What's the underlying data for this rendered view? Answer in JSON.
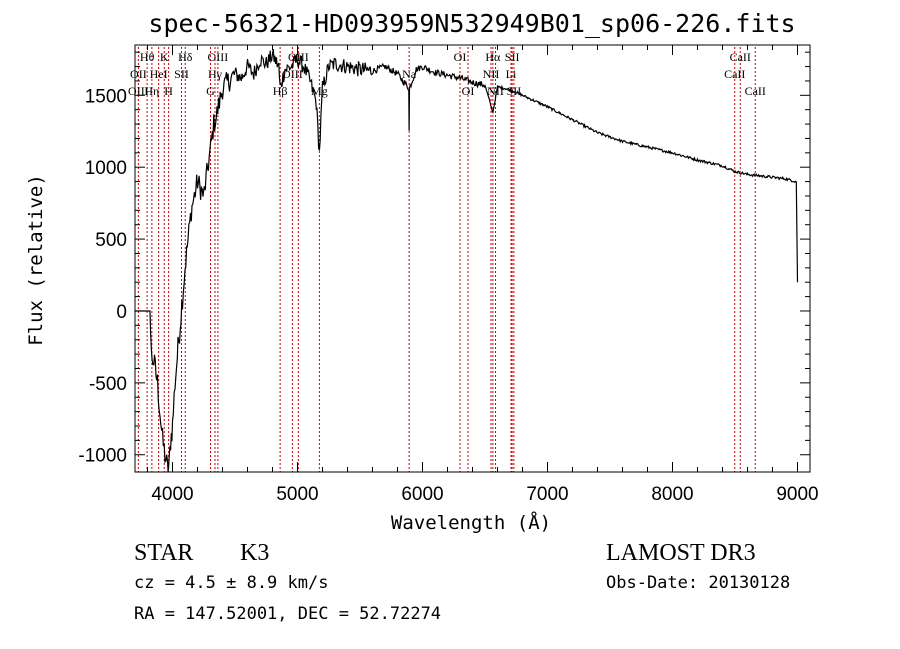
{
  "chart_data": {
    "type": "line",
    "title": "spec-56321-HD093959N532949B01_sp06-226.fits",
    "xlabel": "Wavelength (Å)",
    "ylabel": "Flux (relative)",
    "xlim": [
      3700,
      9100
    ],
    "ylim": [
      -1120,
      1850
    ],
    "x_ticks": [
      4000,
      5000,
      6000,
      7000,
      8000,
      9000
    ],
    "y_ticks": [
      -1000,
      -500,
      0,
      500,
      1000,
      1500
    ],
    "series": [
      {
        "name": "flux",
        "x": [
          3700,
          3780,
          3820,
          3830,
          3850,
          3880,
          3900,
          3920,
          3940,
          3960,
          3975,
          3985,
          4000,
          4020,
          4050,
          4080,
          4100,
          4150,
          4200,
          4250,
          4300,
          4330,
          4350,
          4400,
          4450,
          4500,
          4550,
          4600,
          4650,
          4700,
          4750,
          4800,
          4850,
          4861,
          4900,
          4950,
          5000,
          5050,
          5100,
          5150,
          5175,
          5200,
          5250,
          5300,
          5400,
          5500,
          5600,
          5700,
          5800,
          5890,
          5893,
          5896,
          5950,
          6000,
          6100,
          6200,
          6300,
          6400,
          6500,
          6563,
          6600,
          6700,
          6800,
          7000,
          7200,
          7400,
          7600,
          7800,
          8000,
          8200,
          8400,
          8500,
          8600,
          8700,
          8800,
          8900,
          8990,
          9000
        ],
        "y": [
          0,
          0,
          0,
          -300,
          -350,
          -500,
          -700,
          -900,
          -1000,
          -1100,
          -1050,
          -900,
          -800,
          -500,
          -200,
          100,
          300,
          700,
          900,
          800,
          1100,
          1300,
          1350,
          1550,
          1600,
          1650,
          1620,
          1700,
          1650,
          1750,
          1720,
          1780,
          1700,
          1550,
          1680,
          1700,
          1750,
          1700,
          1600,
          1450,
          1100,
          1550,
          1700,
          1720,
          1700,
          1680,
          1670,
          1700,
          1650,
          1550,
          1250,
          1550,
          1680,
          1700,
          1660,
          1640,
          1620,
          1590,
          1570,
          1380,
          1560,
          1540,
          1500,
          1420,
          1330,
          1240,
          1180,
          1140,
          1100,
          1050,
          1010,
          970,
          950,
          940,
          930,
          920,
          900,
          200
        ]
      }
    ],
    "lines": [
      {
        "label": "Hθ",
        "wavelength": 3797,
        "row": 1
      },
      {
        "label": "OII",
        "wavelength": 3727,
        "row": 2
      },
      {
        "label": "OIII",
        "wavelength": 3727,
        "row": 3
      },
      {
        "label": "K",
        "wavelength": 3934,
        "row": 1
      },
      {
        "label": "HeI",
        "wavelength": 3889,
        "row": 2
      },
      {
        "label": "Hη",
        "wavelength": 3835,
        "row": 3
      },
      {
        "label": "Hδ",
        "wavelength": 4102,
        "row": 1
      },
      {
        "label": "SII",
        "wavelength": 4072,
        "row": 2
      },
      {
        "label": "H",
        "wavelength": 3969,
        "row": 3
      },
      {
        "label": "OIII",
        "wavelength": 4363,
        "row": 1
      },
      {
        "label": "Hγ",
        "wavelength": 4340,
        "row": 2
      },
      {
        "label": "G",
        "wavelength": 4304,
        "row": 3
      },
      {
        "label": "OIII",
        "wavelength": 5007,
        "row": 1
      },
      {
        "label": "OIII",
        "wavelength": 4959,
        "row": 2
      },
      {
        "label": "Hβ",
        "wavelength": 4861,
        "row": 3
      },
      {
        "label": "Mg",
        "wavelength": 5175,
        "row": 3
      },
      {
        "label": "Na",
        "wavelength": 5893,
        "row": 2
      },
      {
        "label": "OI",
        "wavelength": 6300,
        "row": 1
      },
      {
        "label": "OI",
        "wavelength": 6364,
        "row": 3
      },
      {
        "label": "Hα",
        "wavelength": 6563,
        "row": 1
      },
      {
        "label": "SII",
        "wavelength": 6717,
        "row": 1
      },
      {
        "label": "NII",
        "wavelength": 6548,
        "row": 2
      },
      {
        "label": "Li",
        "wavelength": 6708,
        "row": 2
      },
      {
        "label": "NII",
        "wavelength": 6584,
        "row": 3
      },
      {
        "label": "SII",
        "wavelength": 6731,
        "row": 3
      },
      {
        "label": "CaII",
        "wavelength": 8542,
        "row": 1
      },
      {
        "label": "CaII",
        "wavelength": 8498,
        "row": 2
      },
      {
        "label": "CaII",
        "wavelength": 8662,
        "row": 3
      }
    ]
  },
  "info": {
    "class_label": "STAR",
    "subclass": "K3",
    "survey": "LAMOST DR3",
    "cz": "cz = 4.5 ± 8.9 km/s",
    "obs_date": "Obs-Date: 20130128",
    "coords": "RA = 147.52001, DEC =  52.72274"
  },
  "colors": {
    "spectrum": "#000000",
    "line_marker": "#cc0000",
    "axis": "#000000"
  }
}
